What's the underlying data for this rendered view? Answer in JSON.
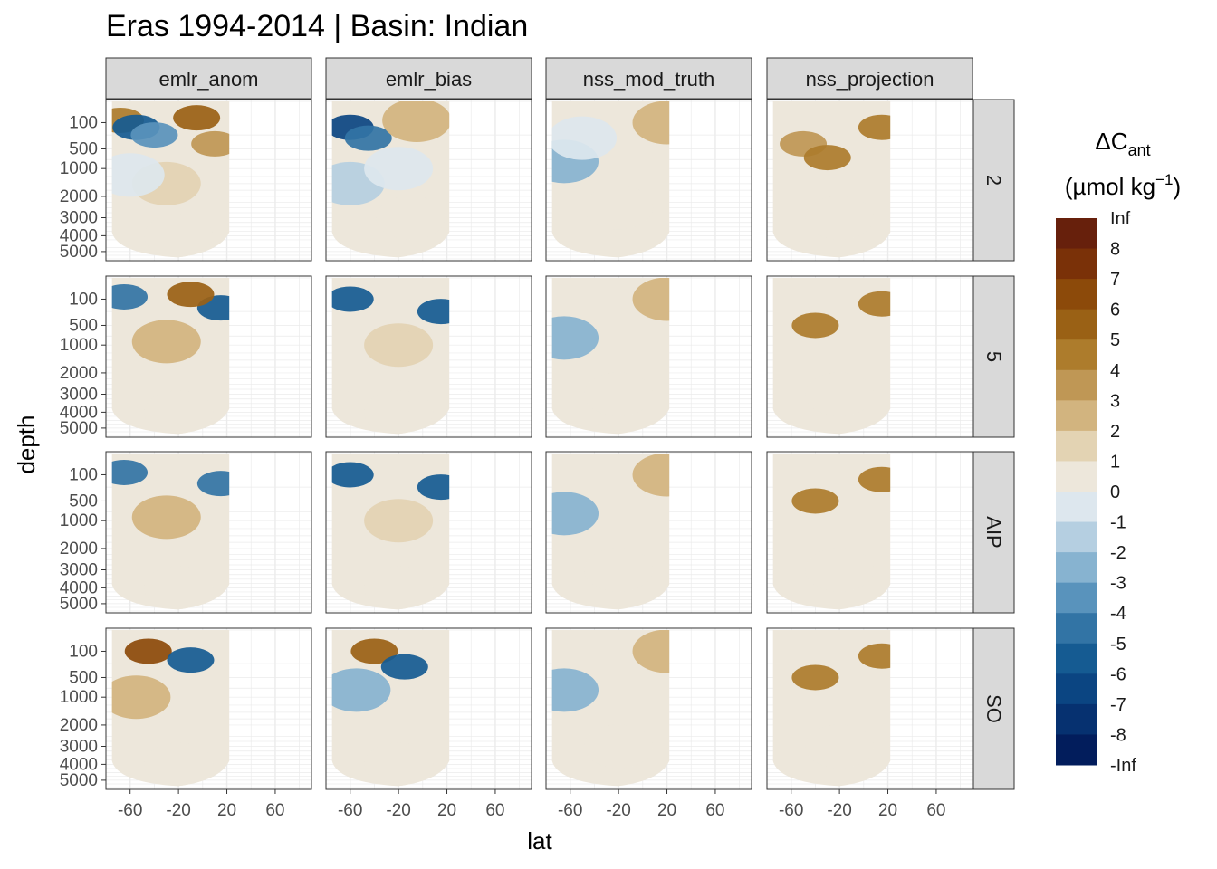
{
  "chart_data": {
    "type": "heatmap",
    "title": "Eras 1994-2014 | Basin: Indian",
    "xlabel": "lat",
    "ylabel": "depth",
    "xlim": [
      -80,
      90
    ],
    "ylim_depth_sqrt_axis": [
      0,
      5500
    ],
    "x_ticks": [
      -60,
      -20,
      20,
      60
    ],
    "x_tick_labels": [
      "-60",
      "-20",
      "20",
      "60"
    ],
    "y_ticks": [
      100,
      500,
      1000,
      2000,
      3000,
      4000,
      5000
    ],
    "y_tick_labels": [
      "100",
      "500",
      "1000",
      "2000",
      "3000",
      "4000",
      "5000"
    ],
    "columns": [
      "emlr_anom",
      "emlr_bias",
      "nss_mod_truth",
      "nss_projection"
    ],
    "rows": [
      "2",
      "5",
      "AIP",
      "SO"
    ],
    "legend": {
      "title_main": "ΔC",
      "title_sub": "ant",
      "unit_prefix": "(µmol kg",
      "unit_sup": "−1",
      "unit_suffix": ")",
      "labels": [
        "Inf",
        "8",
        "7",
        "6",
        "5",
        "4",
        "3",
        "2",
        "1",
        "0",
        "-1",
        "-2",
        "-3",
        "-4",
        "-5",
        "-6",
        "-7",
        "-8",
        "-Inf"
      ],
      "colors": [
        "#67200c",
        "#7a3108",
        "#8c4a0a",
        "#9a6115",
        "#ad7c2c",
        "#bf9755",
        "#d2b47f",
        "#e3d3b3",
        "#ede7db",
        "#dde7ee",
        "#b5cfe1",
        "#87b3d0",
        "#5993bc",
        "#3274a5",
        "#155b92",
        "#0b4582",
        "#063170",
        "#021d5c"
      ]
    },
    "panel_fields_note": "values in umol kg-1, classes sampled on lat x depth",
    "panels": [
      {
        "column": "emlr_anom",
        "row": "2",
        "fields": [
          {
            "lat": -68,
            "depth": 80,
            "value": 4.5
          },
          {
            "lat": -55,
            "depth": 150,
            "value": -5.5
          },
          {
            "lat": -40,
            "depth": 250,
            "value": -3.5
          },
          {
            "lat": -5,
            "depth": 60,
            "value": 5.5
          },
          {
            "lat": 10,
            "depth": 400,
            "value": 3.5
          },
          {
            "lat": -30,
            "depth": 1500,
            "value": 1.5
          },
          {
            "lat": -60,
            "depth": 1200,
            "value": -0.5
          },
          {
            "lat": -20,
            "depth": 4000,
            "value": 0.5
          }
        ]
      },
      {
        "column": "emlr_bias",
        "row": "2",
        "fields": [
          {
            "lat": -60,
            "depth": 150,
            "value": -6.5
          },
          {
            "lat": -45,
            "depth": 300,
            "value": -4.5
          },
          {
            "lat": -5,
            "depth": 80,
            "value": 2.5
          },
          {
            "lat": -60,
            "depth": 1500,
            "value": -1.5
          },
          {
            "lat": -20,
            "depth": 1000,
            "value": -0.5
          },
          {
            "lat": -10,
            "depth": 3000,
            "value": 0.5
          }
        ]
      },
      {
        "column": "nss_mod_truth",
        "row": "2",
        "fields": [
          {
            "lat": -65,
            "depth": 800,
            "value": -2.5
          },
          {
            "lat": -50,
            "depth": 300,
            "value": -0.5
          },
          {
            "lat": 20,
            "depth": 100,
            "value": 2.5
          },
          {
            "lat": -20,
            "depth": 2500,
            "value": 0.5
          }
        ]
      },
      {
        "column": "nss_projection",
        "row": "2",
        "fields": [
          {
            "lat": -50,
            "depth": 400,
            "value": 3.5
          },
          {
            "lat": -30,
            "depth": 700,
            "value": 4.5
          },
          {
            "lat": 15,
            "depth": 150,
            "value": 4.5
          },
          {
            "lat": -20,
            "depth": 3000,
            "value": 0.5
          }
        ]
      },
      {
        "column": "emlr_anom",
        "row": "5",
        "fields": [
          {
            "lat": -65,
            "depth": 80,
            "value": -4.5
          },
          {
            "lat": 15,
            "depth": 200,
            "value": -5.5
          },
          {
            "lat": -30,
            "depth": 900,
            "value": 2.5
          },
          {
            "lat": -10,
            "depth": 60,
            "value": 5.5
          },
          {
            "lat": -20,
            "depth": 4000,
            "value": 0.5
          }
        ]
      },
      {
        "column": "emlr_bias",
        "row": "5",
        "fields": [
          {
            "lat": -60,
            "depth": 100,
            "value": -5.5
          },
          {
            "lat": 15,
            "depth": 250,
            "value": -5.5
          },
          {
            "lat": -20,
            "depth": 1000,
            "value": 1.5
          },
          {
            "lat": -20,
            "depth": 4000,
            "value": 0.5
          }
        ]
      },
      {
        "column": "nss_mod_truth",
        "row": "5",
        "fields": [
          {
            "lat": -65,
            "depth": 800,
            "value": -2.5
          },
          {
            "lat": 20,
            "depth": 100,
            "value": 2.5
          },
          {
            "lat": -20,
            "depth": 3000,
            "value": 0.5
          }
        ]
      },
      {
        "column": "nss_projection",
        "row": "5",
        "fields": [
          {
            "lat": -40,
            "depth": 500,
            "value": 4.5
          },
          {
            "lat": 15,
            "depth": 150,
            "value": 4.5
          },
          {
            "lat": -20,
            "depth": 3000,
            "value": 0.5
          }
        ]
      },
      {
        "column": "emlr_anom",
        "row": "AIP",
        "fields": [
          {
            "lat": -65,
            "depth": 80,
            "value": -4.5
          },
          {
            "lat": 15,
            "depth": 200,
            "value": -4.5
          },
          {
            "lat": -30,
            "depth": 900,
            "value": 2.5
          },
          {
            "lat": -20,
            "depth": 4000,
            "value": 0.5
          }
        ]
      },
      {
        "column": "emlr_bias",
        "row": "AIP",
        "fields": [
          {
            "lat": -60,
            "depth": 100,
            "value": -5.5
          },
          {
            "lat": 15,
            "depth": 250,
            "value": -5.5
          },
          {
            "lat": -20,
            "depth": 1000,
            "value": 1.5
          },
          {
            "lat": -20,
            "depth": 4000,
            "value": 0.5
          }
        ]
      },
      {
        "column": "nss_mod_truth",
        "row": "AIP",
        "fields": [
          {
            "lat": -65,
            "depth": 800,
            "value": -2.5
          },
          {
            "lat": 20,
            "depth": 100,
            "value": 2.5
          },
          {
            "lat": -20,
            "depth": 3000,
            "value": 0.5
          }
        ]
      },
      {
        "column": "nss_projection",
        "row": "AIP",
        "fields": [
          {
            "lat": -40,
            "depth": 500,
            "value": 4.5
          },
          {
            "lat": 15,
            "depth": 150,
            "value": 4.5
          },
          {
            "lat": -20,
            "depth": 3000,
            "value": 0.5
          }
        ]
      },
      {
        "column": "emlr_anom",
        "row": "SO",
        "fields": [
          {
            "lat": -45,
            "depth": 100,
            "value": 6.5
          },
          {
            "lat": -10,
            "depth": 200,
            "value": -5.5
          },
          {
            "lat": -55,
            "depth": 1000,
            "value": 2.5
          },
          {
            "lat": -20,
            "depth": 4000,
            "value": 0.5
          }
        ]
      },
      {
        "column": "emlr_bias",
        "row": "SO",
        "fields": [
          {
            "lat": -40,
            "depth": 100,
            "value": 5.5
          },
          {
            "lat": -15,
            "depth": 300,
            "value": -5.5
          },
          {
            "lat": -55,
            "depth": 800,
            "value": -2.5
          },
          {
            "lat": -20,
            "depth": 4000,
            "value": 0.5
          }
        ]
      },
      {
        "column": "nss_mod_truth",
        "row": "SO",
        "fields": [
          {
            "lat": -65,
            "depth": 800,
            "value": -2.5
          },
          {
            "lat": 20,
            "depth": 100,
            "value": 2.5
          },
          {
            "lat": -20,
            "depth": 3000,
            "value": 0.5
          }
        ]
      },
      {
        "column": "nss_projection",
        "row": "SO",
        "fields": [
          {
            "lat": -40,
            "depth": 500,
            "value": 4.5
          },
          {
            "lat": 15,
            "depth": 150,
            "value": 4.5
          },
          {
            "lat": -20,
            "depth": 3000,
            "value": 0.5
          }
        ]
      }
    ]
  }
}
